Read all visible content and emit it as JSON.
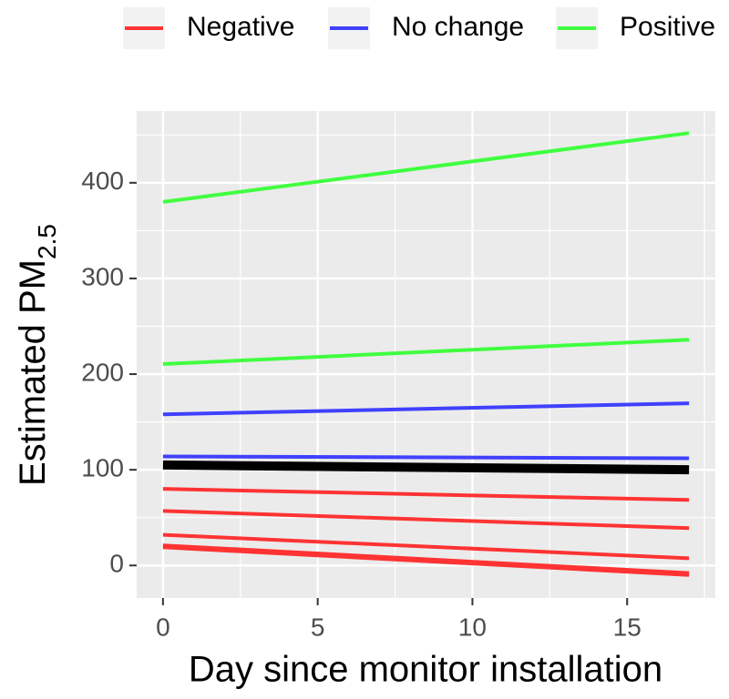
{
  "chart_data": {
    "type": "line",
    "x_label": "Day since monitor installation",
    "y_label": "Estimated PM",
    "y_label_sub": "2.5",
    "x": [
      0,
      17
    ],
    "series": [
      {
        "name": "Negative",
        "color": "#ff3333",
        "lines": [
          [
            80,
            68.5
          ],
          [
            57,
            39
          ],
          [
            32,
            7.5
          ],
          [
            21,
            -8
          ],
          [
            19,
            -10
          ]
        ]
      },
      {
        "name": "No change",
        "color": "#4040ff",
        "lines": [
          [
            158,
            169.5
          ],
          [
            114,
            112
          ]
        ]
      },
      {
        "name": "Positive",
        "color": "#40ff40",
        "lines": [
          [
            380,
            452
          ],
          [
            210.5,
            236
          ]
        ]
      }
    ],
    "reference": {
      "color": "#000000",
      "values": [
        105,
        100
      ]
    },
    "xlim": [
      -0.85,
      17.85
    ],
    "ylim": [
      -34,
      475
    ],
    "xticks": [
      0,
      5,
      10,
      15
    ],
    "yticks": [
      0,
      100,
      200,
      300,
      400
    ],
    "grid": true,
    "legend_position": "top"
  }
}
